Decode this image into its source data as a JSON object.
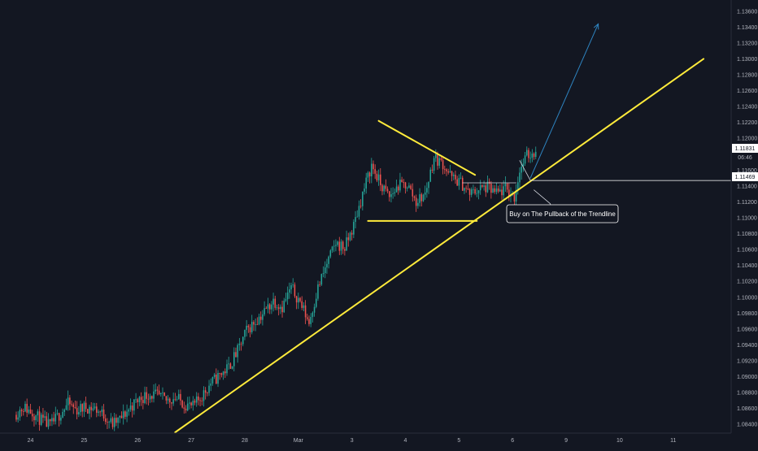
{
  "chart_data": {
    "type": "candlestick",
    "title": "",
    "xlabel": "",
    "ylabel": "",
    "ylim": [
      1.083,
      1.137
    ],
    "y_ticks": [
      "1.13600",
      "1.13400",
      "1.13200",
      "1.13000",
      "1.12800",
      "1.12600",
      "1.12400",
      "1.12200",
      "1.12000",
      "1.11800",
      "1.11600",
      "1.11400",
      "1.11200",
      "1.11000",
      "1.10800",
      "1.10600",
      "1.10400",
      "1.10200",
      "1.10000",
      "1.09800",
      "1.09600",
      "1.09400",
      "1.09200",
      "1.09000",
      "1.08800",
      "1.08600",
      "1.08400"
    ],
    "y_tick_values": [
      1.136,
      1.134,
      1.132,
      1.13,
      1.128,
      1.126,
      1.124,
      1.122,
      1.12,
      1.118,
      1.116,
      1.114,
      1.112,
      1.11,
      1.108,
      1.106,
      1.104,
      1.102,
      1.1,
      1.098,
      1.096,
      1.094,
      1.092,
      1.09,
      1.088,
      1.086,
      1.084
    ],
    "x_ticks": [
      "24",
      "25",
      "26",
      "27",
      "28",
      "Mar",
      "3",
      "4",
      "5",
      "6",
      "9",
      "10",
      "11"
    ],
    "x_tick_index": [
      8,
      38,
      68,
      98,
      128,
      158,
      188,
      218,
      248,
      278,
      308,
      338,
      368
    ],
    "close_anchors": [
      [
        0,
        1.0852
      ],
      [
        5,
        1.0862
      ],
      [
        10,
        1.0855
      ],
      [
        15,
        1.0845
      ],
      [
        20,
        1.0838
      ],
      [
        25,
        1.0852
      ],
      [
        30,
        1.0866
      ],
      [
        35,
        1.0858
      ],
      [
        40,
        1.0862
      ],
      [
        45,
        1.086
      ],
      [
        50,
        1.0852
      ],
      [
        55,
        1.084
      ],
      [
        60,
        1.0848
      ],
      [
        65,
        1.0862
      ],
      [
        70,
        1.0872
      ],
      [
        75,
        1.0878
      ],
      [
        80,
        1.0876
      ],
      [
        85,
        1.087
      ],
      [
        90,
        1.0874
      ],
      [
        95,
        1.0866
      ],
      [
        100,
        1.0862
      ],
      [
        105,
        1.0876
      ],
      [
        110,
        1.0892
      ],
      [
        115,
        1.0902
      ],
      [
        120,
        1.0912
      ],
      [
        125,
        1.0932
      ],
      [
        130,
        1.0958
      ],
      [
        135,
        1.097
      ],
      [
        140,
        1.0982
      ],
      [
        145,
        1.0996
      ],
      [
        150,
        1.0988
      ],
      [
        155,
        1.1012
      ],
      [
        160,
        1.0994
      ],
      [
        165,
        1.0968
      ],
      [
        170,
        1.1012
      ],
      [
        175,
        1.1042
      ],
      [
        180,
        1.1068
      ],
      [
        185,
        1.1062
      ],
      [
        190,
        1.109
      ],
      [
        195,
        1.113
      ],
      [
        200,
        1.1166
      ],
      [
        205,
        1.1142
      ],
      [
        210,
        1.1126
      ],
      [
        215,
        1.114
      ],
      [
        220,
        1.1142
      ],
      [
        225,
        1.112
      ],
      [
        230,
        1.113
      ],
      [
        235,
        1.1176
      ],
      [
        240,
        1.1168
      ],
      [
        245,
        1.115
      ],
      [
        250,
        1.1144
      ],
      [
        255,
        1.113
      ],
      [
        260,
        1.1136
      ],
      [
        265,
        1.1138
      ],
      [
        270,
        1.113
      ],
      [
        275,
        1.1136
      ],
      [
        280,
        1.1126
      ],
      [
        283,
        1.116
      ],
      [
        287,
        1.1178
      ],
      [
        292,
        1.1183
      ]
    ],
    "candle_count": 292,
    "last_price_label": "1.11831",
    "countdown_label": "06:46",
    "level_label": "1.11469",
    "level_value": 1.11469,
    "annotation": "Buy on The Pullback of the Trendline",
    "up_color": "#26a69a",
    "down_color": "#ef5350",
    "line_color": "#ffeb3b",
    "projection_color": "#2e84c1",
    "background": "#131722",
    "axis_text_color": "#b2b5be",
    "drawings": {
      "trendline": [
        [
          89,
          1.083
        ],
        [
          385,
          1.13
        ]
      ],
      "triangle_top": [
        [
          203,
          1.1222
        ],
        [
          257,
          1.1154
        ]
      ],
      "triangle_bottom": [
        [
          197,
          1.1096
        ],
        [
          258,
          1.1096
        ]
      ],
      "resistance": [
        [
          250,
          1.1144
        ],
        [
          280,
          1.1144
        ]
      ],
      "projection": [
        [
          288,
          1.115
        ],
        [
          326,
          1.1344
        ]
      ],
      "pointer_1": [
        [
          282,
          1.1172
        ],
        [
          288,
          1.1147
        ]
      ],
      "pointer_2": [
        [
          290,
          1.1135
        ],
        [
          299,
          1.1118
        ]
      ]
    }
  }
}
